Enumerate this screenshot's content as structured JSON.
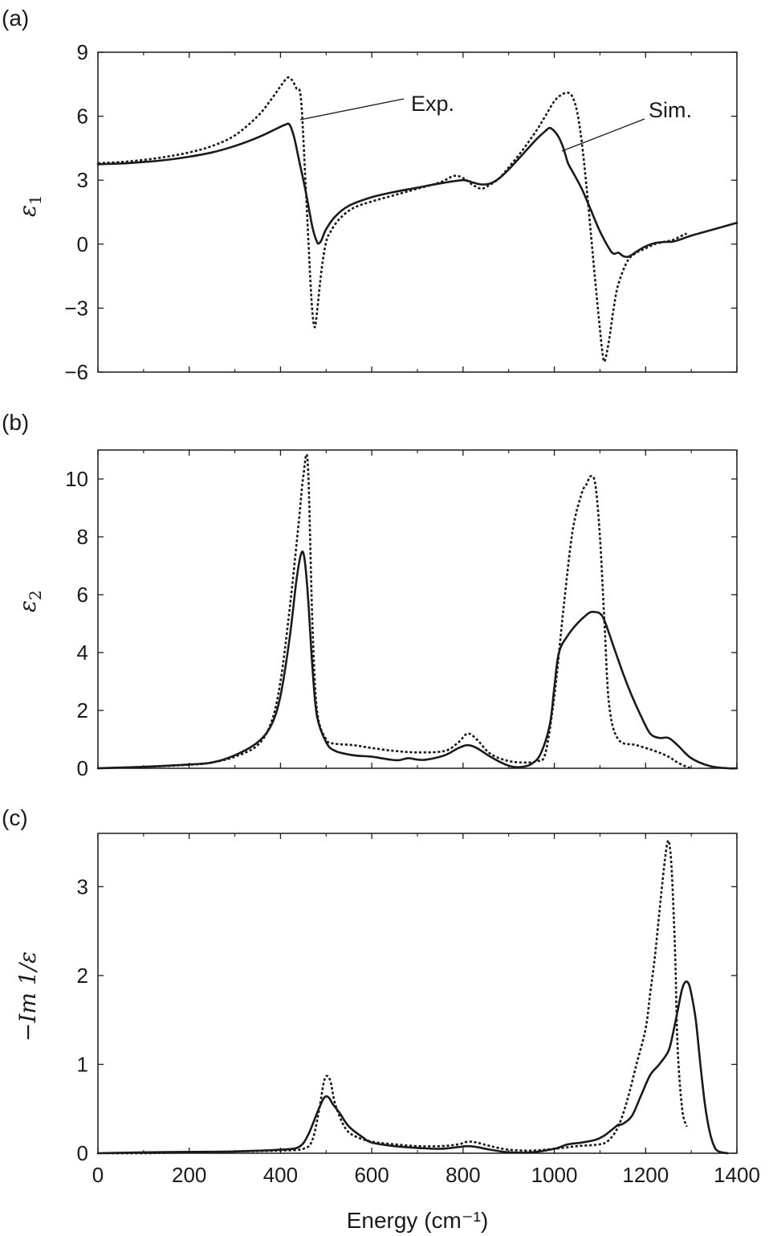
{
  "chart_data": [
    {
      "panel": "(a)",
      "type": "line",
      "ylabel": "ε",
      "ylabel_sub": "1",
      "xlabel": "",
      "xlim": [
        0,
        1400
      ],
      "ylim": [
        -6,
        9
      ],
      "yticks": [
        9,
        6,
        3,
        0,
        -3,
        -6
      ],
      "yticklabels": [
        "9",
        "6",
        "3",
        "0",
        "−3",
        "−6"
      ],
      "xticks": [
        0,
        200,
        400,
        600,
        800,
        1000,
        1200,
        1400
      ],
      "show_xticklabels": false,
      "annotations": [
        {
          "text": "Exp.",
          "series": "exp",
          "x": 445
        },
        {
          "text": "Sim.",
          "series": "sim",
          "x": 1020
        }
      ],
      "series": [
        {
          "key": "exp",
          "style": "dotted",
          "x": [
            0,
            50,
            100,
            150,
            200,
            250,
            300,
            350,
            380,
            400,
            415,
            425,
            435,
            445,
            455,
            465,
            470,
            475,
            480,
            490,
            500,
            510,
            530,
            560,
            600,
            650,
            700,
            750,
            780,
            800,
            820,
            840,
            860,
            880,
            900,
            930,
            960,
            980,
            1000,
            1015,
            1030,
            1040,
            1050,
            1060,
            1070,
            1080,
            1090,
            1100,
            1105,
            1110,
            1120,
            1130,
            1140,
            1160,
            1180,
            1200,
            1220,
            1240,
            1260,
            1280,
            1290
          ],
          "values": [
            3.8,
            3.85,
            3.95,
            4.1,
            4.3,
            4.6,
            5.1,
            6.0,
            6.8,
            7.4,
            7.8,
            7.7,
            7.3,
            6.8,
            2.8,
            -1.5,
            -3.2,
            -3.9,
            -3.2,
            -1.2,
            0.1,
            0.6,
            1.2,
            1.7,
            2.0,
            2.3,
            2.6,
            2.9,
            3.2,
            3.1,
            2.8,
            2.6,
            2.8,
            3.1,
            3.6,
            4.4,
            5.3,
            6.0,
            6.7,
            7.0,
            7.1,
            6.9,
            6.2,
            4.8,
            2.8,
            0.5,
            -1.8,
            -4.0,
            -5.0,
            -5.5,
            -4.5,
            -3.0,
            -1.9,
            -0.8,
            -0.4,
            -0.2,
            0.0,
            0.1,
            0.2,
            0.4,
            0.5
          ]
        },
        {
          "key": "sim",
          "style": "solid",
          "x": [
            0,
            50,
            100,
            150,
            200,
            250,
            300,
            350,
            390,
            410,
            420,
            430,
            440,
            455,
            470,
            480,
            485,
            490,
            500,
            520,
            550,
            600,
            650,
            700,
            750,
            800,
            820,
            840,
            860,
            880,
            900,
            930,
            960,
            980,
            990,
            1000,
            1010,
            1020,
            1030,
            1040,
            1060,
            1080,
            1100,
            1120,
            1130,
            1140,
            1150,
            1160,
            1170,
            1180,
            1200,
            1220,
            1240,
            1260,
            1280,
            1300,
            1350,
            1400
          ],
          "values": [
            3.75,
            3.78,
            3.85,
            3.95,
            4.1,
            4.3,
            4.6,
            5.0,
            5.4,
            5.6,
            5.6,
            5.0,
            4.0,
            2.5,
            0.8,
            0.1,
            0.05,
            0.2,
            0.7,
            1.3,
            1.8,
            2.2,
            2.45,
            2.65,
            2.85,
            3.0,
            2.9,
            2.8,
            2.85,
            3.1,
            3.5,
            4.2,
            4.9,
            5.3,
            5.45,
            5.3,
            5.0,
            4.5,
            3.8,
            3.4,
            2.6,
            1.6,
            0.6,
            -0.2,
            -0.45,
            -0.4,
            -0.55,
            -0.6,
            -0.5,
            -0.35,
            -0.1,
            0.05,
            0.1,
            0.12,
            0.25,
            0.4,
            0.7,
            1.0
          ]
        }
      ]
    },
    {
      "panel": "(b)",
      "type": "line",
      "ylabel": "ε",
      "ylabel_sub": "2",
      "xlabel": "",
      "xlim": [
        0,
        1400
      ],
      "ylim": [
        0,
        11
      ],
      "yticks": [
        10,
        8,
        6,
        4,
        2,
        0
      ],
      "yticklabels": [
        "10",
        "8",
        "6",
        "4",
        "2",
        "0"
      ],
      "xticks": [
        0,
        200,
        400,
        600,
        800,
        1000,
        1200,
        1400
      ],
      "show_xticklabels": false,
      "series": [
        {
          "key": "exp",
          "style": "dotted",
          "x": [
            0,
            100,
            200,
            250,
            300,
            350,
            380,
            400,
            420,
            440,
            450,
            460,
            470,
            480,
            500,
            520,
            560,
            600,
            650,
            700,
            760,
            790,
            810,
            830,
            860,
            900,
            940,
            960,
            980,
            1000,
            1020,
            1040,
            1060,
            1070,
            1080,
            1090,
            1100,
            1110,
            1120,
            1140,
            1180,
            1220,
            1250,
            1270,
            1290,
            1300
          ],
          "values": [
            0.0,
            0.05,
            0.12,
            0.2,
            0.4,
            0.8,
            1.6,
            3.0,
            5.5,
            8.5,
            10.1,
            10.5,
            5.0,
            2.0,
            1.0,
            0.85,
            0.8,
            0.7,
            0.6,
            0.55,
            0.6,
            0.9,
            1.2,
            1.0,
            0.5,
            0.25,
            0.2,
            0.25,
            0.5,
            2.5,
            5.5,
            8.2,
            9.5,
            9.8,
            10.1,
            9.8,
            8.0,
            5.0,
            2.2,
            1.0,
            0.8,
            0.6,
            0.4,
            0.2,
            0.05,
            0.0
          ]
        },
        {
          "key": "sim",
          "style": "solid",
          "x": [
            0,
            100,
            200,
            250,
            300,
            350,
            380,
            400,
            420,
            435,
            445,
            452,
            460,
            470,
            480,
            500,
            520,
            560,
            600,
            640,
            660,
            680,
            700,
            720,
            760,
            790,
            810,
            830,
            860,
            890,
            910,
            930,
            950,
            970,
            990,
            1000,
            1010,
            1030,
            1050,
            1070,
            1080,
            1090,
            1100,
            1110,
            1130,
            1150,
            1170,
            1190,
            1210,
            1230,
            1250,
            1270,
            1300,
            1340,
            1380,
            1400
          ],
          "values": [
            0.0,
            0.05,
            0.13,
            0.2,
            0.45,
            0.9,
            1.5,
            2.5,
            4.5,
            6.5,
            7.4,
            7.3,
            6.0,
            3.5,
            1.8,
            0.9,
            0.6,
            0.45,
            0.4,
            0.3,
            0.28,
            0.35,
            0.3,
            0.3,
            0.45,
            0.7,
            0.8,
            0.7,
            0.4,
            0.15,
            0.05,
            0.05,
            0.15,
            0.5,
            1.5,
            2.8,
            4.0,
            4.6,
            5.0,
            5.3,
            5.4,
            5.4,
            5.35,
            5.1,
            4.2,
            3.3,
            2.5,
            1.8,
            1.2,
            1.05,
            1.05,
            0.8,
            0.35,
            0.08,
            0.0,
            0.0
          ]
        }
      ]
    },
    {
      "panel": "(c)",
      "type": "line",
      "ylabel": "−Im 1/ε",
      "xlabel": "Energy (cm⁻¹)",
      "xlim": [
        0,
        1400
      ],
      "ylim": [
        0,
        3.6
      ],
      "yticks": [
        3,
        2,
        1,
        0
      ],
      "yticklabels": [
        "3",
        "2",
        "1",
        "0"
      ],
      "xticks": [
        0,
        200,
        400,
        600,
        800,
        1000,
        1200,
        1400
      ],
      "xticklabels": [
        "0",
        "200",
        "400",
        "600",
        "800",
        "1000",
        "1200",
        "1400"
      ],
      "show_xticklabels": true,
      "series": [
        {
          "key": "exp",
          "style": "dotted",
          "x": [
            20,
            100,
            200,
            300,
            400,
            450,
            470,
            485,
            495,
            502,
            510,
            520,
            540,
            560,
            600,
            650,
            700,
            750,
            790,
            810,
            830,
            860,
            900,
            950,
            1000,
            1050,
            1100,
            1120,
            1140,
            1160,
            1180,
            1200,
            1210,
            1220,
            1230,
            1240,
            1248,
            1253,
            1258,
            1265,
            1270,
            1280,
            1290
          ],
          "values": [
            0.0,
            0.0,
            0.01,
            0.02,
            0.03,
            0.05,
            0.15,
            0.5,
            0.8,
            0.87,
            0.8,
            0.55,
            0.3,
            0.2,
            0.13,
            0.1,
            0.08,
            0.08,
            0.1,
            0.13,
            0.12,
            0.08,
            0.04,
            0.03,
            0.05,
            0.08,
            0.1,
            0.15,
            0.3,
            0.6,
            1.0,
            1.4,
            1.8,
            2.2,
            2.7,
            3.2,
            3.5,
            3.45,
            3.1,
            2.2,
            1.2,
            0.5,
            0.3
          ]
        },
        {
          "key": "sim",
          "style": "solid",
          "x": [
            0,
            100,
            200,
            300,
            400,
            440,
            460,
            480,
            495,
            505,
            515,
            530,
            550,
            580,
            600,
            650,
            700,
            750,
            790,
            810,
            830,
            860,
            900,
            950,
            1000,
            1030,
            1060,
            1090,
            1110,
            1130,
            1140,
            1150,
            1170,
            1190,
            1210,
            1230,
            1250,
            1260,
            1270,
            1280,
            1288,
            1295,
            1300,
            1310,
            1320,
            1330,
            1340,
            1350,
            1360,
            1380
          ],
          "values": [
            0.0,
            0.01,
            0.015,
            0.02,
            0.04,
            0.07,
            0.2,
            0.45,
            0.62,
            0.63,
            0.55,
            0.45,
            0.3,
            0.18,
            0.12,
            0.08,
            0.06,
            0.05,
            0.07,
            0.08,
            0.07,
            0.04,
            0.01,
            0.01,
            0.05,
            0.1,
            0.12,
            0.15,
            0.2,
            0.28,
            0.32,
            0.33,
            0.42,
            0.65,
            0.88,
            1.0,
            1.15,
            1.35,
            1.6,
            1.85,
            1.93,
            1.9,
            1.8,
            1.5,
            1.0,
            0.55,
            0.25,
            0.08,
            0.02,
            0.0
          ]
        }
      ]
    }
  ]
}
